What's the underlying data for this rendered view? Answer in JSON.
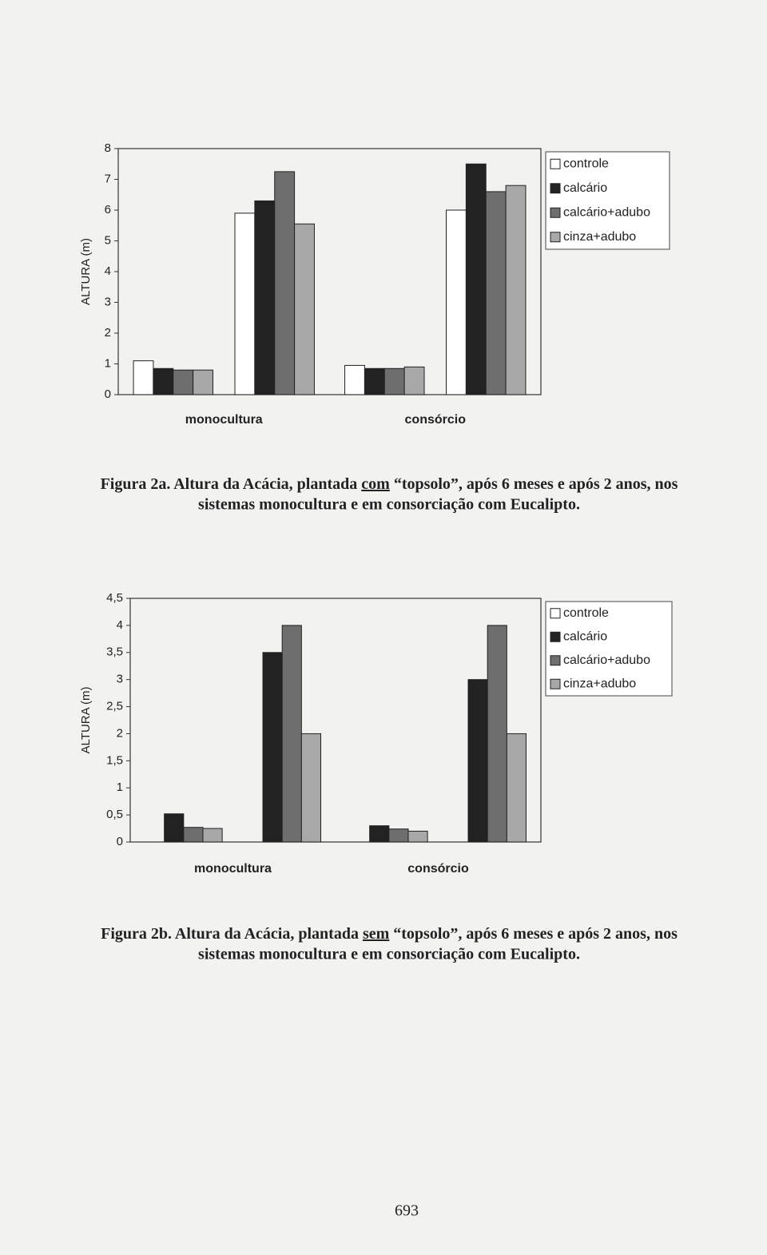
{
  "chart_data": [
    {
      "type": "bar",
      "y_label": "ALTURA (m)",
      "categories": [
        "monocultura",
        "consórcio"
      ],
      "series": [
        {
          "name": "controle",
          "color": "#ffffff",
          "values": [
            [
              1.1,
              5.9
            ],
            [
              0.95,
              6.0
            ]
          ]
        },
        {
          "name": "calcário",
          "color": "#222222",
          "values": [
            [
              0.85,
              6.3
            ],
            [
              0.85,
              7.5
            ]
          ]
        },
        {
          "name": "calcário+adubo",
          "color": "#6e6e6e",
          "values": [
            [
              0.8,
              7.25
            ],
            [
              0.85,
              6.6
            ]
          ]
        },
        {
          "name": "cinza+adubo",
          "color": "#a8a8a8",
          "values": [
            [
              0.8,
              5.55
            ],
            [
              0.9,
              6.8
            ]
          ]
        }
      ],
      "ylim": [
        0,
        8
      ],
      "yticks": [
        0,
        1,
        2,
        3,
        4,
        5,
        6,
        7,
        8
      ],
      "legend": "right",
      "caption": {
        "line1_before": "Figura 2a. Altura da Acácia, plantada ",
        "underlined": "com",
        "line1_after": " “topsolo”, após 6 meses e após 2 anos, nos",
        "line2": "sistemas monocultura e em consorciação com Eucalipto."
      }
    },
    {
      "type": "bar",
      "y_label": "ALTURA (m)",
      "categories": [
        "monocultura",
        "consórcio"
      ],
      "series": [
        {
          "name": "controle",
          "color": "#ffffff",
          "values": [
            [
              0,
              0
            ],
            [
              0,
              0
            ]
          ]
        },
        {
          "name": "calcário",
          "color": "#222222",
          "values": [
            [
              0.52,
              3.5
            ],
            [
              0.3,
              3.0
            ]
          ]
        },
        {
          "name": "calcário+adubo",
          "color": "#6e6e6e",
          "values": [
            [
              0.27,
              4.0
            ],
            [
              0.24,
              4.0
            ]
          ]
        },
        {
          "name": "cinza+adubo",
          "color": "#a8a8a8",
          "values": [
            [
              0.25,
              2.0
            ],
            [
              0.2,
              2.0
            ]
          ]
        }
      ],
      "ylim": [
        0,
        4.5
      ],
      "yticks": [
        0,
        {
          "value": 0.5,
          "label": "0,5"
        },
        1,
        {
          "value": 1.5,
          "label": "1,5"
        },
        2,
        {
          "value": 2.5,
          "label": "2,5"
        },
        3,
        {
          "value": 3.5,
          "label": "3,5"
        },
        4,
        {
          "value": 4.5,
          "label": "4,5"
        }
      ],
      "legend": "right",
      "caption": {
        "line1_before": "Figura 2b. Altura da Acácia, plantada ",
        "underlined": "sem",
        "line1_after": " “topsolo”, após 6 meses e após 2 anos, nos",
        "line2": "sistemas monocultura e em consorciação com Eucalipto."
      }
    }
  ],
  "page_number": "693"
}
